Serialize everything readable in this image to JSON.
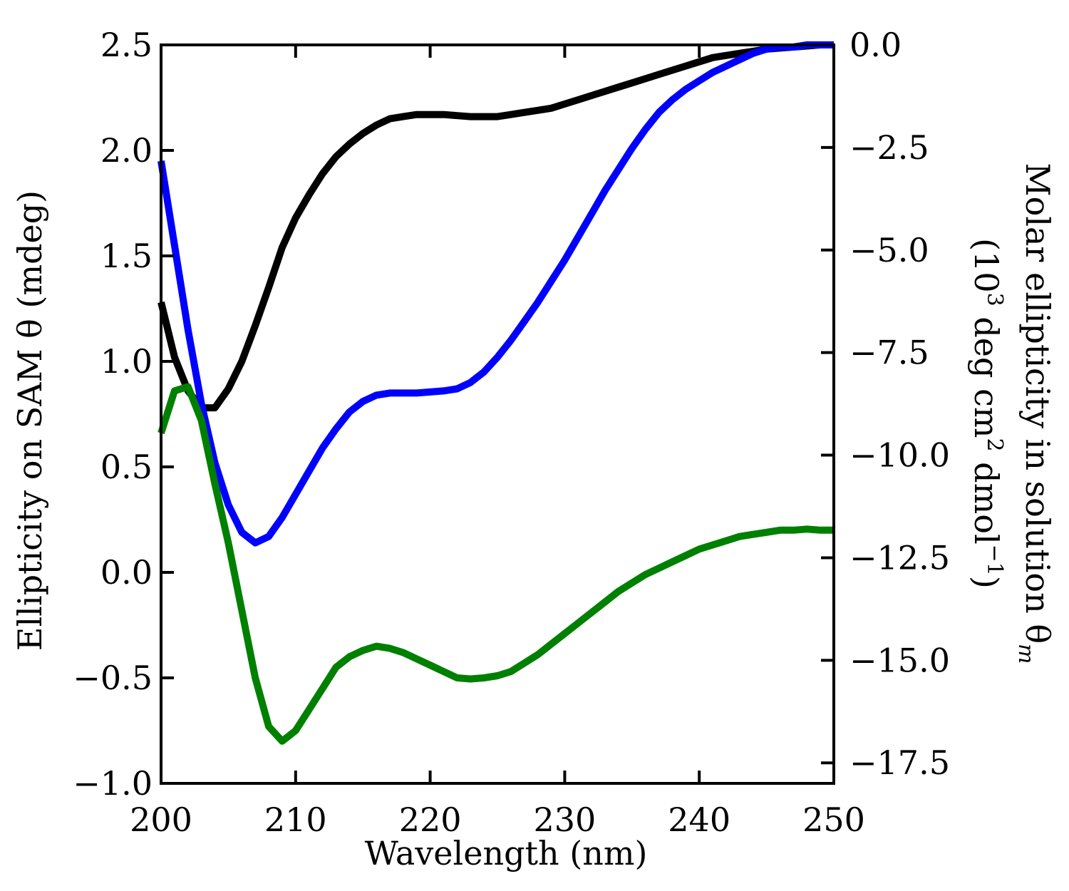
{
  "chart_data": {
    "type": "line",
    "xlabel": "Wavelength (nm)",
    "ylabel_left": "Ellipticity on SAM θ (mdeg)",
    "ylabel_right": {
      "line1_main": "Molar ellipticity in solution θ",
      "line1_sub": "m",
      "line2_open": "(10",
      "line2_sup1": "3",
      "line2_mid": " deg cm",
      "line2_sup2": "2",
      "line2_end": " dmol",
      "line2_sup3": "−1",
      "line2_close": ")"
    },
    "xlim": [
      200,
      250
    ],
    "ylim_left": [
      -1.0,
      2.5
    ],
    "ylim_right": [
      -18.0,
      0.0
    ],
    "x_ticks": [
      "200",
      "210",
      "220",
      "230",
      "240",
      "250"
    ],
    "x_tick_values": [
      200,
      210,
      220,
      230,
      240,
      250
    ],
    "y_left_ticks": [
      "−1.0",
      "−0.5",
      "0.0",
      "0.5",
      "1.0",
      "1.5",
      "2.0",
      "2.5"
    ],
    "y_left_tick_values": [
      -1.0,
      -0.5,
      0.0,
      0.5,
      1.0,
      1.5,
      2.0,
      2.5
    ],
    "y_right_ticks": [
      "0.0",
      "−2.5",
      "−5.0",
      "−7.5",
      "−10.0",
      "−12.5",
      "−15.0",
      "−17.5"
    ],
    "y_right_tick_values": [
      0.0,
      -2.5,
      -5.0,
      -7.5,
      -10.0,
      -12.5,
      -15.0,
      -17.5
    ],
    "grid": false,
    "series": [
      {
        "color": "#000000",
        "axis": "left",
        "x": [
          200,
          201,
          202,
          203,
          204,
          205,
          206,
          207,
          208,
          209,
          210,
          211,
          212,
          213,
          214,
          215,
          216,
          217,
          218,
          219,
          220,
          221,
          222,
          223,
          224,
          225,
          226,
          227,
          228,
          229,
          230,
          231,
          232,
          233,
          234,
          235,
          236,
          237,
          238,
          239,
          240,
          241,
          242,
          243,
          244,
          245,
          246,
          247,
          248,
          249,
          250
        ],
        "y": [
          1.28,
          1.02,
          0.86,
          0.78,
          0.78,
          0.87,
          1.0,
          1.17,
          1.35,
          1.54,
          1.68,
          1.79,
          1.89,
          1.97,
          2.03,
          2.08,
          2.12,
          2.15,
          2.16,
          2.17,
          2.17,
          2.17,
          2.165,
          2.16,
          2.16,
          2.16,
          2.17,
          2.18,
          2.19,
          2.2,
          2.22,
          2.24,
          2.26,
          2.28,
          2.3,
          2.32,
          2.34,
          2.36,
          2.38,
          2.4,
          2.42,
          2.44,
          2.45,
          2.46,
          2.47,
          2.48,
          2.485,
          2.49,
          2.495,
          2.5,
          2.5
        ]
      },
      {
        "color": "#0000ff",
        "axis": "left",
        "x": [
          200,
          201,
          202,
          203,
          204,
          205,
          206,
          207,
          208,
          209,
          210,
          211,
          212,
          213,
          214,
          215,
          216,
          217,
          218,
          219,
          220,
          221,
          222,
          223,
          224,
          225,
          226,
          227,
          228,
          229,
          230,
          231,
          232,
          233,
          234,
          235,
          236,
          237,
          238,
          239,
          240,
          241,
          242,
          243,
          244,
          245,
          246,
          247,
          248,
          249,
          250
        ],
        "y": [
          1.95,
          1.55,
          1.15,
          0.8,
          0.52,
          0.32,
          0.19,
          0.14,
          0.17,
          0.26,
          0.37,
          0.48,
          0.59,
          0.68,
          0.76,
          0.81,
          0.84,
          0.85,
          0.85,
          0.85,
          0.855,
          0.86,
          0.87,
          0.9,
          0.95,
          1.02,
          1.1,
          1.19,
          1.28,
          1.38,
          1.48,
          1.59,
          1.7,
          1.81,
          1.91,
          2.01,
          2.1,
          2.18,
          2.24,
          2.29,
          2.33,
          2.37,
          2.4,
          2.43,
          2.46,
          2.48,
          2.49,
          2.49,
          2.5,
          2.5,
          2.5
        ]
      },
      {
        "color": "#008000",
        "axis": "left",
        "x": [
          200,
          201,
          202,
          203,
          204,
          205,
          206,
          207,
          208,
          209,
          210,
          211,
          212,
          213,
          214,
          215,
          216,
          217,
          218,
          219,
          220,
          221,
          222,
          223,
          224,
          225,
          226,
          227,
          228,
          229,
          230,
          231,
          232,
          233,
          234,
          235,
          236,
          237,
          238,
          239,
          240,
          241,
          242,
          243,
          244,
          245,
          246,
          247,
          248,
          249,
          250
        ],
        "y": [
          0.66,
          0.86,
          0.88,
          0.72,
          0.42,
          0.14,
          -0.18,
          -0.5,
          -0.73,
          -0.8,
          -0.75,
          -0.65,
          -0.55,
          -0.45,
          -0.4,
          -0.37,
          -0.35,
          -0.36,
          -0.38,
          -0.41,
          -0.44,
          -0.47,
          -0.5,
          -0.505,
          -0.5,
          -0.49,
          -0.47,
          -0.43,
          -0.39,
          -0.34,
          -0.29,
          -0.24,
          -0.19,
          -0.14,
          -0.09,
          -0.05,
          -0.01,
          0.02,
          0.05,
          0.08,
          0.11,
          0.13,
          0.15,
          0.17,
          0.18,
          0.19,
          0.2,
          0.2,
          0.205,
          0.2,
          0.2
        ]
      }
    ]
  }
}
